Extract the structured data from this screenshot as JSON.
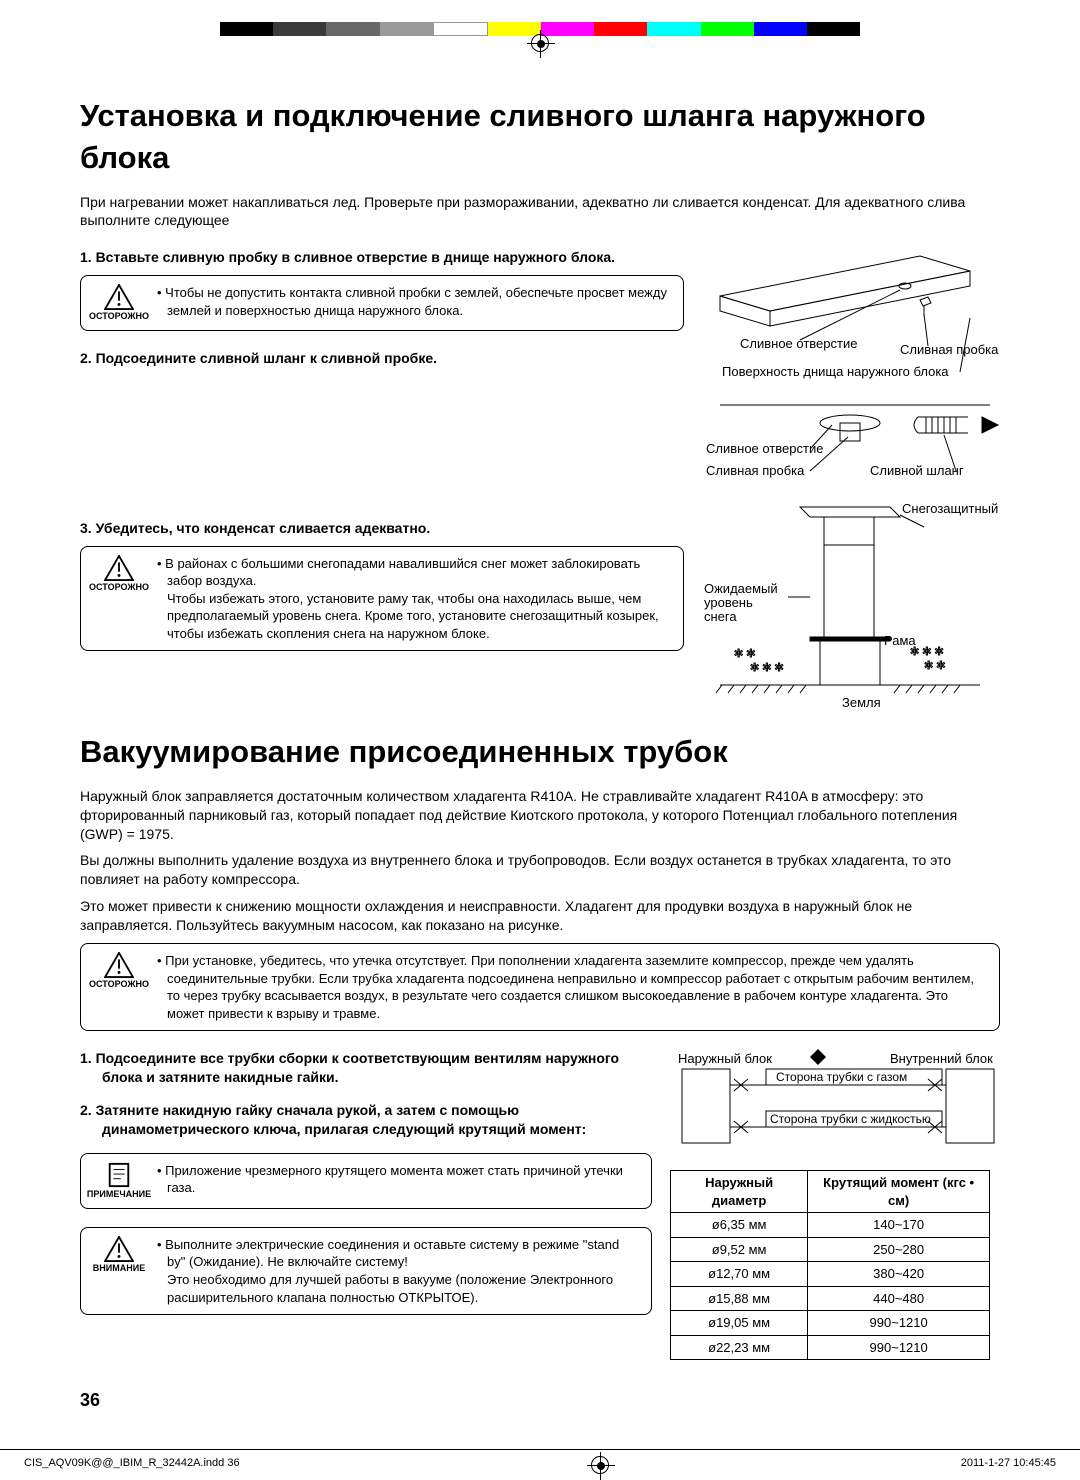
{
  "colorbar": [
    "#000000",
    "#3a3a3a",
    "#686868",
    "#9a9a9a",
    "#ffffff",
    "#ffff00",
    "#ff00ff",
    "#ff0000",
    "#00ffff",
    "#00ff00",
    "#0000ff",
    "#000000"
  ],
  "section1": {
    "title": "Установка и подключение сливного шланга наружного блока",
    "intro": "При нагревании может накапливаться лед. Проверьте при размораживании, адекватно ли сливается конденсат. Для адекватного слива выполните следующее",
    "step1": "1.   Вставьте сливную пробку в сливное отверстие в днище наружного блока.",
    "callout1_label": "ОСТОРОЖНО",
    "callout1_text": "Чтобы не допустить контакта сливной пробки с землей, обеспечьте просвет между землей и поверхностью днища наружного блока.",
    "step2": "2.   Подсоедините сливной шланг к сливной пробке.",
    "step3": "3.   Убедитесь, что конденсат сливается адекватно.",
    "callout2_label": "ОСТОРОЖНО",
    "callout2_text": "В районах с большими снегопадами навалившийся снег может заблокировать забор воздуха.\nЧтобы избежать этого, установите раму так, чтобы она находилась выше, чем предполагаемый уровень снега. Кроме того, установите снегозащитный козырек, чтобы избежать скопления снега на наружном блоке.",
    "fig1": {
      "drain_hole": "Сливное\nотверстие",
      "drain_plug": "Сливная пробка",
      "bottom_surface": "Поверхность днища наружного блока"
    },
    "fig2": {
      "drain_hole": "Сливное отверстие",
      "drain_plug": "Сливная пробка",
      "drain_hose": "Сливной шланг"
    },
    "fig3": {
      "snow_cap": "Снегозащитный\nколпак",
      "snow_level": "Ожидаемый\nуровень\nснега",
      "frame": "Рама",
      "ground": "Земля"
    }
  },
  "section2": {
    "title": "Вакуумирование присоединенных трубок",
    "p1": "Наружный блок заправляется достаточным количеством хладагента R410A. Не стравливайте хладагент R410A в атмосферу: это фторированный парниковый газ, который попадает под действие Киотского протокола, у которого Потенциал глобального потепления (GWP)  = 1975.",
    "p2": "Вы должны выполнить удаление воздуха из внутреннего блока и трубопроводов. Если воздух останется в трубках хладагента, то это повлияет на работу компрессора.",
    "p3": "Это может привести к снижению мощности охлаждения и неисправности. Хладагент для продувки воздуха в наружный блок не заправляется. Пользуйтесь вакуумным насосом, как показано на рисунке.",
    "callout3_label": "ОСТОРОЖНО",
    "callout3_text": "При установке, убедитесь, что утечка отсутствует. При пополнении хладагента заземлите компрессор, прежде чем удалять соединительные трубки. Если трубка хладагента подсоединена неправильно и компрессор работает с открытым рабочим вентилем, то через трубку всасывается воздух, в результате чего создается слишком высокоедавление в рабочем контуре хладагента. Это может привести к взрыву и травме.",
    "step1": "1.   Подсоедините все трубки сборки к соответствующим вентилям наружного блока и затяните накидные гайки.",
    "step2": "2.   Затяните накидную гайку сначала рукой, а затем с помощью динамометрического ключа, прилагая следующий крутящий момент:",
    "callout_note_label": "ПРИМЕЧАНИЕ",
    "callout_note_text": "Приложение чрезмерного крутящего момента может стать причиной утечки газа.",
    "callout_warn_label": "ВНИМАНИЕ",
    "callout_warn_text": "Выполните электрические соединения и оставьте систему в режиме \"stand by\" (Ожидание). Не включайте систему!\nЭто необходимо для лучшей работы в вакууме (положение Электронного расширительного клапана полностью ОТКРЫТОЕ).",
    "fig": {
      "outdoor": "Наружный блок",
      "indoor": "Внутренний блок",
      "gas": "Сторона трубки с газом",
      "liquid": "Сторона трубки с жидкостью"
    },
    "table": {
      "h1": "Наружный диаметр",
      "h2": "Крутящий момент (кгс • см)",
      "rows": [
        [
          "ø6,35 мм",
          "140~170"
        ],
        [
          "ø9,52 мм",
          "250~280"
        ],
        [
          "ø12,70 мм",
          "380~420"
        ],
        [
          "ø15,88 мм",
          "440~480"
        ],
        [
          "ø19,05 мм",
          "990~1210"
        ],
        [
          "ø22,23 мм",
          "990~1210"
        ]
      ]
    }
  },
  "page_number": "36",
  "footer": {
    "left": "CIS_AQV09K@@_IBIM_R_32442A.indd   36",
    "right": "2011-1-27   10:45:45"
  }
}
